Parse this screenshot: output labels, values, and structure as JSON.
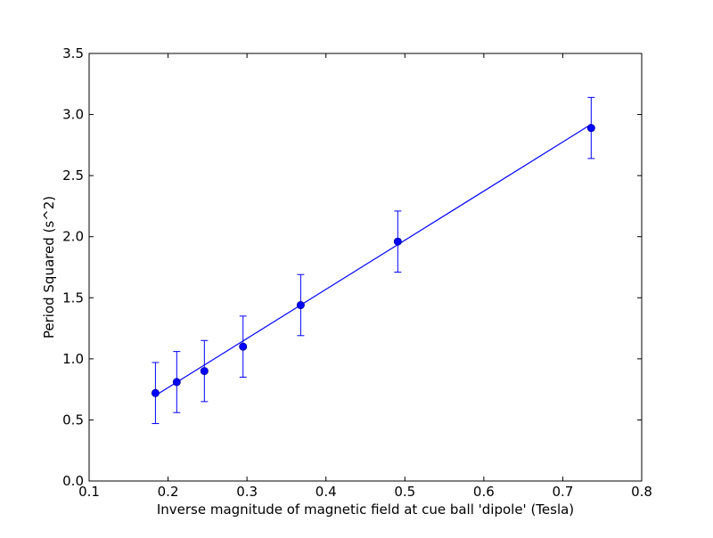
{
  "chart_data": {
    "type": "scatter",
    "title": "",
    "xlabel": "Inverse magnitude of magnetic field at cue ball 'dipole' (Tesla)",
    "ylabel": "Period Squared (s^2)",
    "xlim": [
      0.1,
      0.8
    ],
    "ylim": [
      0.0,
      3.5
    ],
    "xticks": [
      "0.1",
      "0.2",
      "0.3",
      "0.4",
      "0.5",
      "0.6",
      "0.7",
      "0.8"
    ],
    "yticks": [
      "0.0",
      "0.5",
      "1.0",
      "1.5",
      "2.0",
      "2.5",
      "3.0",
      "3.5"
    ],
    "grid": false,
    "legend": "none",
    "color": "#0000ff",
    "series": [
      {
        "x": [
          0.184,
          0.211,
          0.246,
          0.295,
          0.368,
          0.491,
          0.736
        ],
        "y": [
          0.72,
          0.81,
          0.9,
          1.1,
          1.44,
          1.96,
          2.89
        ],
        "yerr": [
          0.25,
          0.25,
          0.25,
          0.25,
          0.25,
          0.25,
          0.25
        ]
      }
    ],
    "fit_line": {
      "x": [
        0.184,
        0.736
      ],
      "y": [
        0.7,
        2.92
      ]
    }
  }
}
